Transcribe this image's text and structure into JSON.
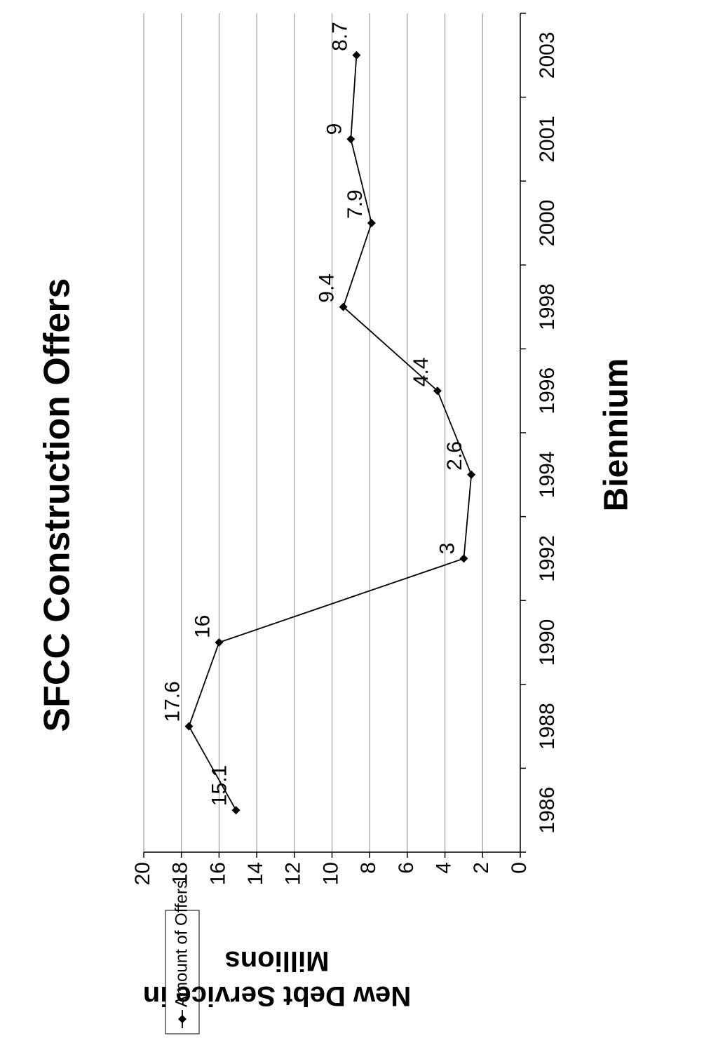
{
  "chart_data": {
    "type": "line",
    "title": "SFCC Construction Offers",
    "x_label": "Biennium",
    "y_label": "New Debt Service in Millions",
    "categories": [
      "1986",
      "1988",
      "1990",
      "1992",
      "1994",
      "1996",
      "1998",
      "2000",
      "2001",
      "2003"
    ],
    "series": [
      {
        "name": "Amount of Offers",
        "color": "#000000",
        "values": [
          15.1,
          17.6,
          16,
          3,
          2.6,
          4.4,
          9.4,
          7.9,
          9,
          8.7
        ]
      }
    ],
    "ylim": [
      0,
      20
    ],
    "yticks": [
      0,
      2,
      4,
      6,
      8,
      10,
      12,
      14,
      16,
      18,
      20
    ],
    "grid": true,
    "legend": "bottom-left"
  }
}
